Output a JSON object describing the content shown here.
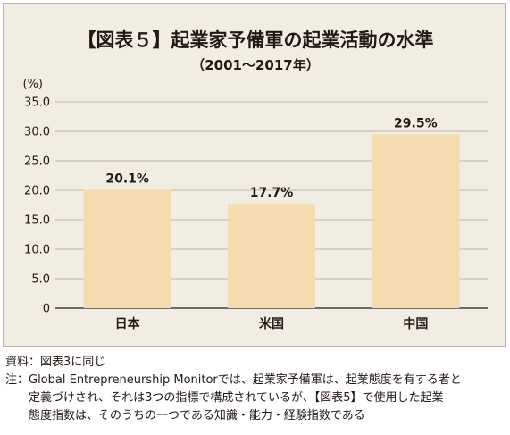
{
  "chart_data": {
    "type": "bar",
    "title": "【図表５】起業家予備軍の起業活動の水準",
    "subtitle": "（2001～2017年）",
    "ylabel": "(%)",
    "xlabel": "",
    "categories": [
      "日本",
      "米国",
      "中国"
    ],
    "values": [
      20.1,
      17.7,
      29.5
    ],
    "data_labels": [
      "20.1%",
      "17.7%",
      "29.5%"
    ],
    "yticks": [
      0,
      5,
      10,
      15,
      20,
      25,
      30,
      35
    ],
    "ytick_labels": [
      "0",
      "5.0",
      "10.0",
      "15.0",
      "20.0",
      "25.0",
      "30.0",
      "35.0"
    ],
    "ylim": [
      0,
      35
    ],
    "grid": true,
    "legend": "none",
    "colors": {
      "bar": "#f4dcb0",
      "background": "#f2ede3",
      "grid": "#bdb6aa"
    }
  },
  "notes": {
    "source": "資料：図表3に同じ",
    "note_1": "注：Global Entrepreneurship Monitorでは、起業家予備軍は、起業態度を有する者と",
    "note_2": "定義づけされ、それは3つの指標で構成されているが、【図表5】で使用した起業",
    "note_3": "態度指数は、そのうちの一つである知識・能力・経験指数である"
  }
}
